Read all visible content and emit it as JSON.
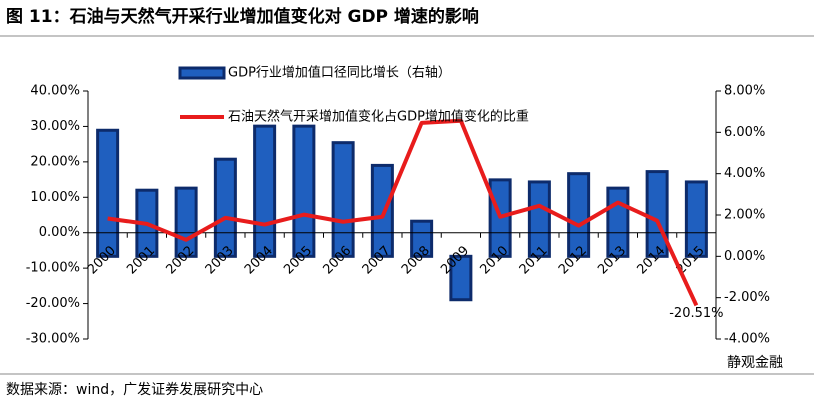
{
  "chart_data": {
    "type": "bar-line",
    "title": "图 11：石油与天然气开采行业增加值变化对 GDP 增速的影响",
    "source": "数据来源：wind，广发证券发展研究中心",
    "watermark": "静观金融",
    "categories": [
      "2000",
      "2001",
      "2002",
      "2003",
      "2004",
      "2005",
      "2006",
      "2007",
      "2008",
      "2009",
      "2010",
      "2011",
      "2012",
      "2013",
      "2014",
      "2015"
    ],
    "series": [
      {
        "name": "GDP行业增加值口径同比增长（右轴）",
        "type": "bar",
        "axis": "y2",
        "color": "#1f5fbf",
        "values": [
          6.1,
          3.2,
          3.3,
          4.7,
          6.3,
          6.3,
          5.5,
          4.4,
          1.7,
          -2.1,
          3.7,
          3.6,
          4.0,
          3.3,
          4.1,
          3.6
        ]
      },
      {
        "name": "石油天然气开采增加值变化占GDP增加值变化的比重",
        "type": "line",
        "axis": "y",
        "color": "#e81c1c",
        "values": [
          4.0,
          2.5,
          -2.0,
          4.2,
          2.3,
          5.1,
          3.1,
          4.5,
          31.0,
          31.6,
          4.5,
          7.6,
          2.0,
          8.5,
          3.4,
          -20.51
        ],
        "value_labels": [
          null,
          null,
          null,
          null,
          null,
          null,
          null,
          null,
          null,
          null,
          null,
          null,
          null,
          null,
          null,
          "-20.51%"
        ]
      }
    ],
    "ylim": [
      -30,
      40
    ],
    "yticks": [
      {
        "value": -30,
        "label": "-30.00%"
      },
      {
        "value": -20,
        "label": "-20.00%"
      },
      {
        "value": -10,
        "label": "-10.00%"
      },
      {
        "value": 0,
        "label": "0.00%"
      },
      {
        "value": 10,
        "label": "10.00%"
      },
      {
        "value": 20,
        "label": "20.00%"
      },
      {
        "value": 30,
        "label": "30.00%"
      },
      {
        "value": 40,
        "label": "40.00%"
      }
    ],
    "y2lim": [
      -4,
      8
    ],
    "y2ticks": [
      {
        "value": -4,
        "label": "-4.00%"
      },
      {
        "value": -2,
        "label": "-2.00%"
      },
      {
        "value": 0,
        "label": "0.00%"
      },
      {
        "value": 2,
        "label": "2.00%"
      },
      {
        "value": 4,
        "label": "4.00%"
      },
      {
        "value": 6,
        "label": "6.00%"
      },
      {
        "value": 8,
        "label": "8.00%"
      }
    ]
  }
}
